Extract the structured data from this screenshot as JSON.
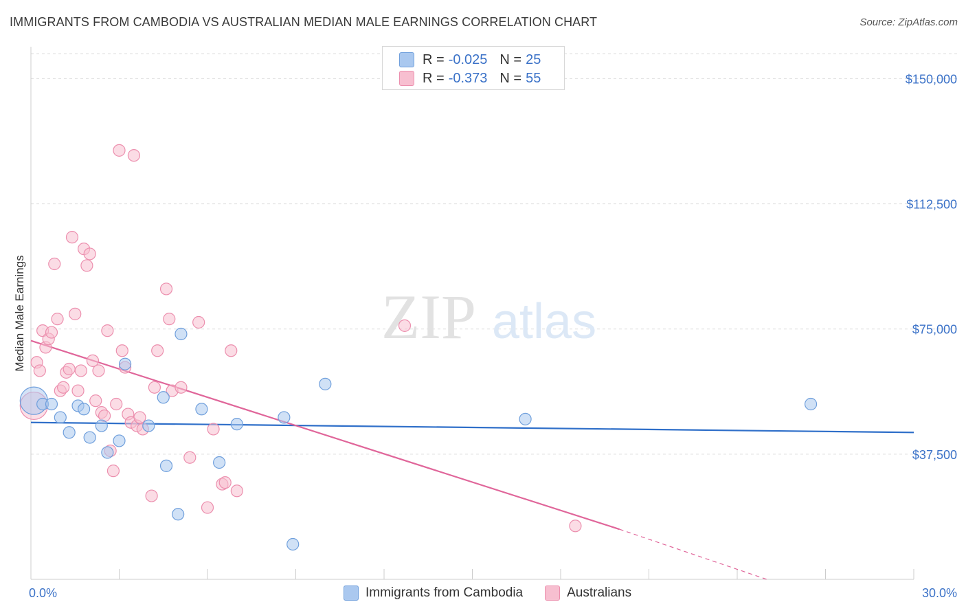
{
  "title": "IMMIGRANTS FROM CAMBODIA VS AUSTRALIAN MEDIAN MALE EARNINGS CORRELATION CHART",
  "source": "Source: ZipAtlas.com",
  "watermark": {
    "zip": "ZIP",
    "atlas": "atlas"
  },
  "legend": {
    "series": [
      {
        "r_label": "R =",
        "r_value": "-0.025",
        "n_label": "N =",
        "n_value": "25"
      },
      {
        "r_label": "R =",
        "r_value": "-0.373",
        "n_label": "N =",
        "n_value": "55"
      }
    ]
  },
  "bottom_legend": [
    "Immigrants from Cambodia",
    "Australians"
  ],
  "colors": {
    "blue_fill": "#aac8ef",
    "blue_stroke": "#6f9fdc",
    "blue_line": "#2f6fc9",
    "pink_fill": "#f7bfd0",
    "pink_stroke": "#ec8fae",
    "pink_line": "#e0669a",
    "tick_text": "#3b72c8",
    "grid": "#dddddd"
  },
  "chart_data": {
    "type": "scatter",
    "title": "IMMIGRANTS FROM CAMBODIA VS AUSTRALIAN MEDIAN MALE EARNINGS CORRELATION CHART",
    "xlabel": "",
    "ylabel": "Median Male Earnings",
    "xlim": [
      0,
      30
    ],
    "ylim": [
      0,
      157500
    ],
    "x_tick_labels": [
      "0.0%",
      "30.0%"
    ],
    "y_ticks": [
      37500,
      75000,
      112500,
      150000
    ],
    "y_tick_labels": [
      "$37,500",
      "$75,000",
      "$112,500",
      "$150,000"
    ],
    "series": [
      {
        "name": "Immigrants from Cambodia",
        "points": [
          [
            0.1,
            53500
          ],
          [
            0.4,
            52500
          ],
          [
            0.7,
            52500
          ],
          [
            1.0,
            48500
          ],
          [
            1.3,
            44000
          ],
          [
            1.6,
            52000
          ],
          [
            1.8,
            51000
          ],
          [
            2.0,
            42500
          ],
          [
            2.4,
            46000
          ],
          [
            2.6,
            38000
          ],
          [
            3.0,
            41500
          ],
          [
            3.2,
            64500
          ],
          [
            4.0,
            46000
          ],
          [
            4.5,
            54500
          ],
          [
            4.6,
            34000
          ],
          [
            5.0,
            19500
          ],
          [
            5.1,
            73500
          ],
          [
            5.8,
            51000
          ],
          [
            6.4,
            35000
          ],
          [
            7.0,
            46500
          ],
          [
            8.6,
            48500
          ],
          [
            8.9,
            10500
          ],
          [
            10.0,
            58500
          ],
          [
            16.8,
            48000
          ],
          [
            26.5,
            52500
          ]
        ],
        "trend": {
          "x": [
            0,
            30
          ],
          "y": [
            47000,
            44000
          ]
        }
      },
      {
        "name": "Australians",
        "points": [
          [
            0.1,
            52000
          ],
          [
            0.2,
            65000
          ],
          [
            0.3,
            62500
          ],
          [
            0.4,
            74500
          ],
          [
            0.5,
            69500
          ],
          [
            0.6,
            72000
          ],
          [
            0.7,
            74000
          ],
          [
            0.8,
            94500
          ],
          [
            0.9,
            78000
          ],
          [
            1.0,
            56500
          ],
          [
            1.1,
            57500
          ],
          [
            1.2,
            62000
          ],
          [
            1.3,
            63000
          ],
          [
            1.4,
            102500
          ],
          [
            1.5,
            79500
          ],
          [
            1.6,
            56500
          ],
          [
            1.7,
            62500
          ],
          [
            1.8,
            99000
          ],
          [
            1.9,
            94000
          ],
          [
            2.0,
            97500
          ],
          [
            2.1,
            65500
          ],
          [
            2.2,
            53500
          ],
          [
            2.3,
            62500
          ],
          [
            2.4,
            50000
          ],
          [
            2.5,
            49000
          ],
          [
            2.6,
            74500
          ],
          [
            2.7,
            38500
          ],
          [
            2.8,
            32500
          ],
          [
            2.9,
            52500
          ],
          [
            3.0,
            128500
          ],
          [
            3.1,
            68500
          ],
          [
            3.2,
            63500
          ],
          [
            3.3,
            49500
          ],
          [
            3.4,
            47000
          ],
          [
            3.5,
            127000
          ],
          [
            3.6,
            46000
          ],
          [
            3.7,
            48500
          ],
          [
            3.8,
            45000
          ],
          [
            4.1,
            25000
          ],
          [
            4.2,
            57500
          ],
          [
            4.3,
            68500
          ],
          [
            4.6,
            87000
          ],
          [
            4.7,
            78000
          ],
          [
            4.8,
            56500
          ],
          [
            5.1,
            57500
          ],
          [
            5.4,
            36500
          ],
          [
            5.7,
            77000
          ],
          [
            6.0,
            21500
          ],
          [
            6.2,
            45000
          ],
          [
            6.5,
            28500
          ],
          [
            6.6,
            29000
          ],
          [
            6.8,
            68500
          ],
          [
            7.0,
            26500
          ],
          [
            12.7,
            76000
          ],
          [
            18.5,
            16000
          ]
        ],
        "trend": {
          "x": [
            0,
            20
          ],
          "y": [
            71500,
            15000
          ]
        },
        "trend_extension": {
          "x": [
            20,
            25
          ],
          "y": [
            15000,
            0
          ]
        }
      }
    ]
  }
}
